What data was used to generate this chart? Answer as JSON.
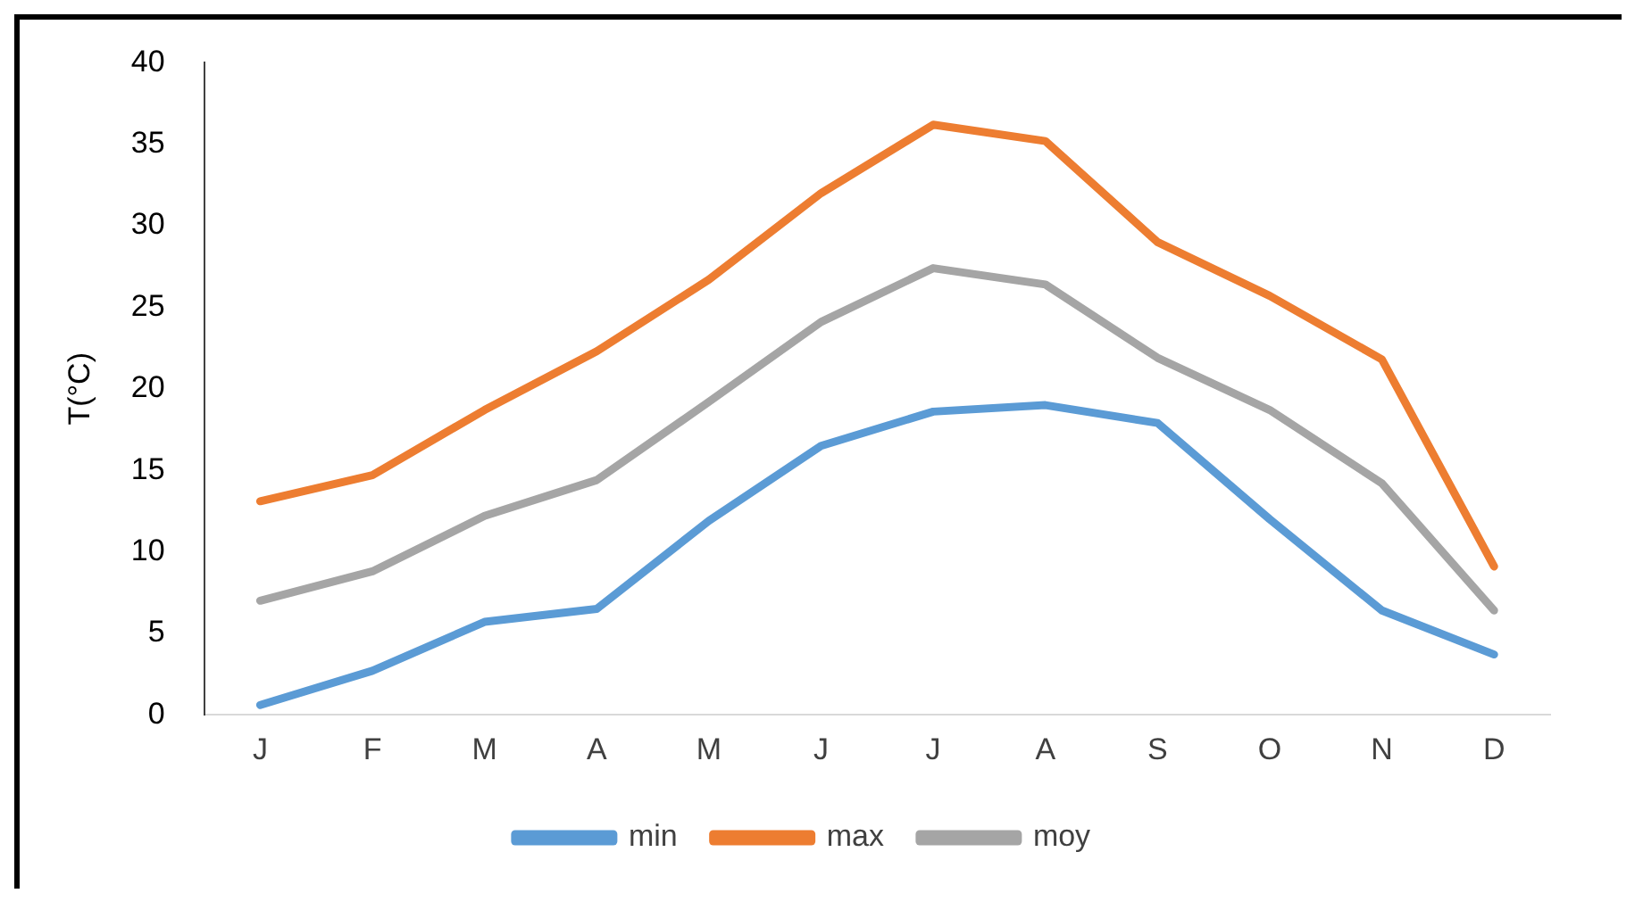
{
  "chart_data": {
    "type": "line",
    "ylabel": "T(°C)",
    "categories": [
      "J",
      "F",
      "M",
      "A",
      "M",
      "J",
      "J",
      "A",
      "S",
      "O",
      "N",
      "D"
    ],
    "series": [
      {
        "name": "min",
        "color": "#5b9bd5",
        "values": [
          0.6,
          2.7,
          5.7,
          6.5,
          11.9,
          16.5,
          18.6,
          19.0,
          17.9,
          12.0,
          6.4,
          3.7
        ]
      },
      {
        "name": "max",
        "color": "#ed7d31",
        "values": [
          13.1,
          14.7,
          18.7,
          22.3,
          26.7,
          32.0,
          36.2,
          35.2,
          29.0,
          25.7,
          21.8,
          9.1
        ]
      },
      {
        "name": "moy",
        "color": "#a5a5a5",
        "values": [
          7.0,
          8.8,
          12.2,
          14.4,
          19.2,
          24.1,
          27.4,
          26.4,
          21.9,
          18.7,
          14.2,
          6.4
        ]
      }
    ],
    "ylim": [
      0,
      40
    ],
    "yticks": [
      0,
      5,
      10,
      15,
      20,
      25,
      30,
      35,
      40
    ],
    "grid": false,
    "legend": "bottom",
    "marker": "none",
    "line_style": "solid"
  }
}
